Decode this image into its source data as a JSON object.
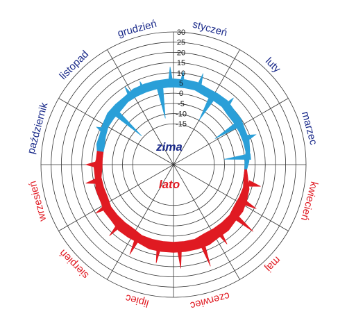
{
  "chart_data": {
    "type": "polar-area",
    "radial_axis": {
      "ticks": [
        30,
        25,
        20,
        15,
        10,
        5,
        0,
        -5,
        -10,
        -15
      ],
      "tick_labels": [
        "30",
        "25",
        "20",
        "15",
        "10",
        "5",
        "0",
        "-5",
        "-10",
        "-15"
      ],
      "min": -35,
      "max": 30
    },
    "months": [
      {
        "name": "styczeń",
        "angle": 15,
        "season": "winter"
      },
      {
        "name": "luty",
        "angle": 45,
        "season": "winter"
      },
      {
        "name": "marzec",
        "angle": 75,
        "season": "winter"
      },
      {
        "name": "kwiecień",
        "angle": 105,
        "season": "summer"
      },
      {
        "name": "maj",
        "angle": 135,
        "season": "summer"
      },
      {
        "name": "czerwiec",
        "angle": 165,
        "season": "summer"
      },
      {
        "name": "lipiec",
        "angle": 195,
        "season": "summer"
      },
      {
        "name": "sierpień",
        "angle": 225,
        "season": "summer"
      },
      {
        "name": "wrzesień",
        "angle": 255,
        "season": "summer"
      },
      {
        "name": "październik",
        "angle": 285,
        "season": "winter"
      },
      {
        "name": "listopad",
        "angle": 315,
        "season": "winter"
      },
      {
        "name": "grudzień",
        "angle": 345,
        "season": "winter"
      }
    ],
    "series": [
      {
        "key": "winter",
        "label": "zima",
        "color": "#2a9fd8",
        "label_color": "#1a2a8a",
        "points": [
          [
            280,
            0,
            3
          ],
          [
            285,
            0,
            4
          ],
          [
            292,
            1,
            4
          ],
          [
            300,
            2,
            5
          ],
          [
            308,
            2,
            6
          ],
          [
            316,
            2,
            6
          ],
          [
            324,
            3,
            6
          ],
          [
            332,
            3,
            7
          ],
          [
            340,
            3,
            7
          ],
          [
            348,
            3,
            7
          ],
          [
            356,
            3,
            7
          ],
          [
            0,
            3,
            7
          ],
          [
            8,
            3,
            7
          ],
          [
            16,
            3,
            7
          ],
          [
            24,
            2,
            6
          ],
          [
            32,
            2,
            6
          ],
          [
            40,
            2,
            6
          ],
          [
            48,
            1,
            5
          ],
          [
            56,
            1,
            5
          ],
          [
            64,
            1,
            4
          ],
          [
            72,
            1,
            4
          ],
          [
            80,
            1,
            3
          ],
          [
            88,
            0,
            2
          ],
          [
            94,
            0,
            1
          ]
        ],
        "spikes": [
          [
            296,
            7
          ],
          [
            312,
            -14
          ],
          [
            328,
            10
          ],
          [
            338,
            9
          ],
          [
            350,
            -12
          ],
          [
            358,
            13
          ],
          [
            6,
            11
          ],
          [
            18,
            12
          ],
          [
            30,
            -10
          ],
          [
            42,
            9
          ],
          [
            58,
            -11
          ],
          [
            70,
            8
          ],
          [
            84,
            -10
          ]
        ]
      },
      {
        "key": "summer",
        "label": "lato",
        "color": "#e01a22",
        "label_color": "#e01a22",
        "points": [
          [
            94,
            0,
            1
          ],
          [
            100,
            0,
            2
          ],
          [
            108,
            1,
            4
          ],
          [
            116,
            1,
            5
          ],
          [
            124,
            1,
            6
          ],
          [
            132,
            2,
            6
          ],
          [
            140,
            2,
            7
          ],
          [
            148,
            2,
            7
          ],
          [
            156,
            2,
            8
          ],
          [
            164,
            3,
            8
          ],
          [
            172,
            3,
            8
          ],
          [
            180,
            3,
            8
          ],
          [
            188,
            3,
            8
          ],
          [
            196,
            3,
            8
          ],
          [
            204,
            3,
            7
          ],
          [
            212,
            2,
            7
          ],
          [
            220,
            2,
            7
          ],
          [
            228,
            2,
            6
          ],
          [
            236,
            2,
            6
          ],
          [
            244,
            1,
            5
          ],
          [
            252,
            1,
            5
          ],
          [
            260,
            1,
            4
          ],
          [
            268,
            0,
            4
          ],
          [
            274,
            0,
            3
          ],
          [
            280,
            0,
            3
          ]
        ],
        "spikes": [
          [
            104,
            9
          ],
          [
            118,
            11
          ],
          [
            130,
            16
          ],
          [
            146,
            12
          ],
          [
            160,
            18
          ],
          [
            176,
            16
          ],
          [
            190,
            14
          ],
          [
            206,
            14
          ],
          [
            222,
            12
          ],
          [
            238,
            10
          ],
          [
            258,
            9
          ],
          [
            270,
            8
          ]
        ]
      }
    ]
  },
  "labels": {
    "winter": "zima",
    "summer": "lato"
  },
  "colors": {
    "grid": "#333333",
    "background": "#ffffff",
    "winter_text": "#1a2a8a",
    "summer_text": "#e01a22"
  }
}
